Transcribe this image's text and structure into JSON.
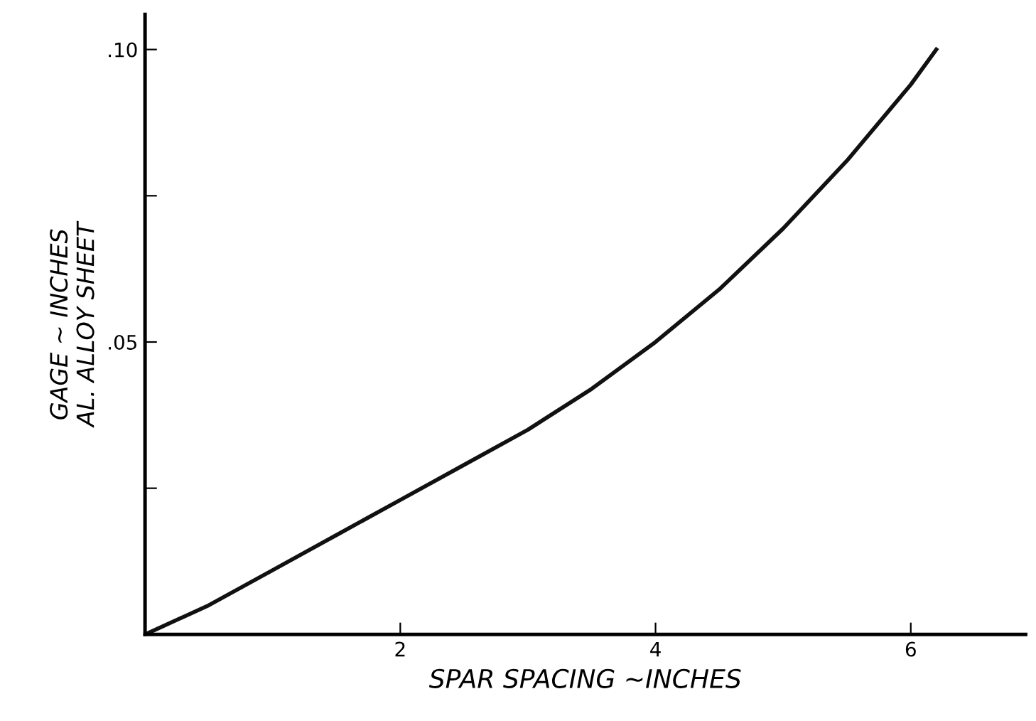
{
  "chart_data": {
    "type": "line",
    "xlabel": "SPAR SPACING ~INCHES",
    "ylabel": "GAGE ~ INCHES\nAL. ALLOY SHEET",
    "series": [
      {
        "color": "#111111",
        "x": [
          0,
          0.5,
          1,
          1.5,
          2,
          2.5,
          3,
          3.5,
          4,
          4.5,
          5,
          5.5,
          6,
          6.2
        ],
        "values": [
          0,
          0.005,
          0.011,
          0.017,
          0.023,
          0.029,
          0.035,
          0.042,
          0.05,
          0.059,
          0.0694,
          0.081,
          0.094,
          0.1
        ]
      }
    ],
    "xlim": [
      0,
      6.9
    ],
    "ylim": [
      0,
      0.106
    ],
    "xticks": [
      2,
      4,
      6
    ],
    "yticks": [
      {
        "value": 0.025,
        "label": null
      },
      {
        "value": 0.05,
        "label": ".05"
      },
      {
        "value": 0.075,
        "label": null
      },
      {
        "value": 0.1,
        "label": ".10"
      }
    ],
    "grid": false,
    "marker": "none",
    "line_style": "solid"
  }
}
